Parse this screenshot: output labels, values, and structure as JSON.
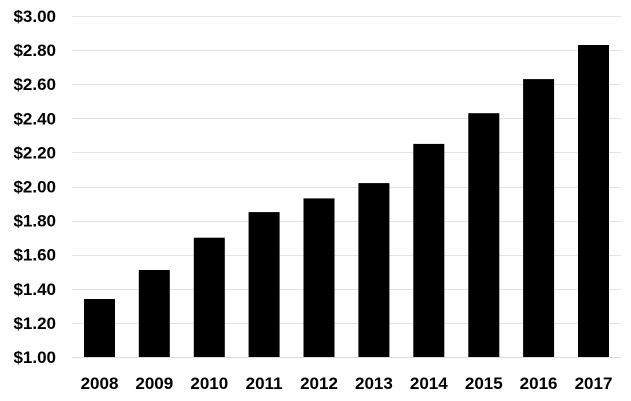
{
  "chart_data": {
    "type": "bar",
    "title": "",
    "xlabel": "",
    "ylabel": "",
    "categories": [
      "2008",
      "2009",
      "2010",
      "2011",
      "2012",
      "2013",
      "2014",
      "2015",
      "2016",
      "2017"
    ],
    "values": [
      1.34,
      1.51,
      1.7,
      1.85,
      1.93,
      2.02,
      2.25,
      2.43,
      2.63,
      2.83
    ],
    "ylim": [
      1.0,
      3.0
    ],
    "yticks": [
      1.0,
      1.2,
      1.4,
      1.6,
      1.8,
      2.0,
      2.2,
      2.4,
      2.6,
      2.8,
      3.0
    ],
    "ytick_labels": [
      "$1.00",
      "$1.20",
      "$1.40",
      "$1.60",
      "$1.80",
      "$2.00",
      "$2.20",
      "$2.40",
      "$2.60",
      "$2.80",
      "$3.00"
    ],
    "grid": true,
    "legend": false,
    "bar_color": "#000000",
    "grid_color": "#e3e3e3"
  }
}
